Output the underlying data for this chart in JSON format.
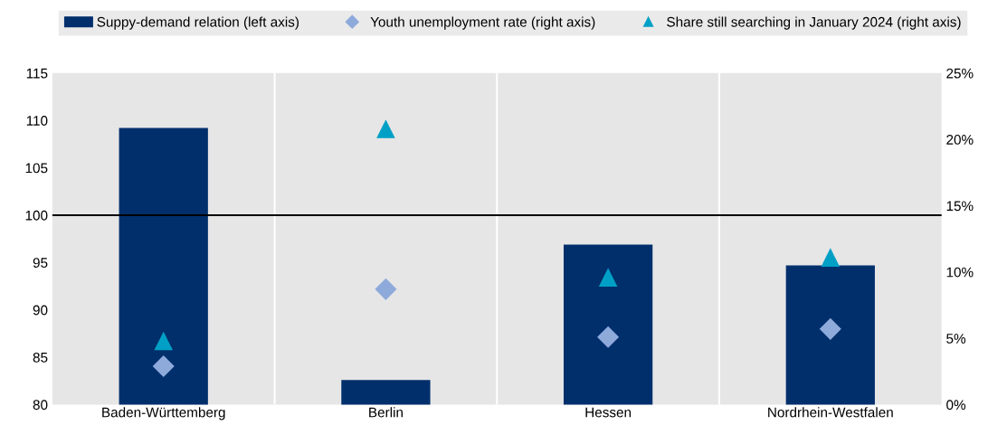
{
  "chart_data": {
    "type": "bar",
    "categories": [
      "Baden-Württemberg",
      "Berlin",
      "Hessen",
      "Nordrhein-Westfalen"
    ],
    "series": [
      {
        "name": "Suppy-demand relation (left axis)",
        "color": "#002f6c",
        "values": [
          109.2,
          82.6,
          96.9,
          94.7
        ]
      },
      {
        "name": "Youth unemployment rate (right axis)",
        "type": "scatter",
        "marker": "diamond",
        "axis": "y2",
        "color": "#8eaadb",
        "values": [
          2.9,
          8.7,
          5.1,
          5.7
        ]
      },
      {
        "name": "Share still searching in January 2024 (right axis)",
        "type": "scatter",
        "marker": "triangle",
        "axis": "y2",
        "color": "#00a0c6",
        "values": [
          4.8,
          20.8,
          9.6,
          11.1
        ]
      }
    ],
    "ylim": [
      80,
      115
    ],
    "yticks": [
      80,
      85,
      90,
      95,
      100,
      105,
      110,
      115
    ],
    "y2lim": [
      0,
      25
    ],
    "y2ticks": [
      {
        "value": 0,
        "label": "0%"
      },
      {
        "value": 5,
        "label": "5%"
      },
      {
        "value": 10,
        "label": "10%"
      },
      {
        "value": 15,
        "label": "15%"
      },
      {
        "value": 20,
        "label": "20%"
      },
      {
        "value": 25,
        "label": "25%"
      }
    ],
    "ref_lines": [
      {
        "axis": "y",
        "value": 100,
        "color": "#000000"
      }
    ],
    "grid": "x",
    "legend": "top"
  }
}
